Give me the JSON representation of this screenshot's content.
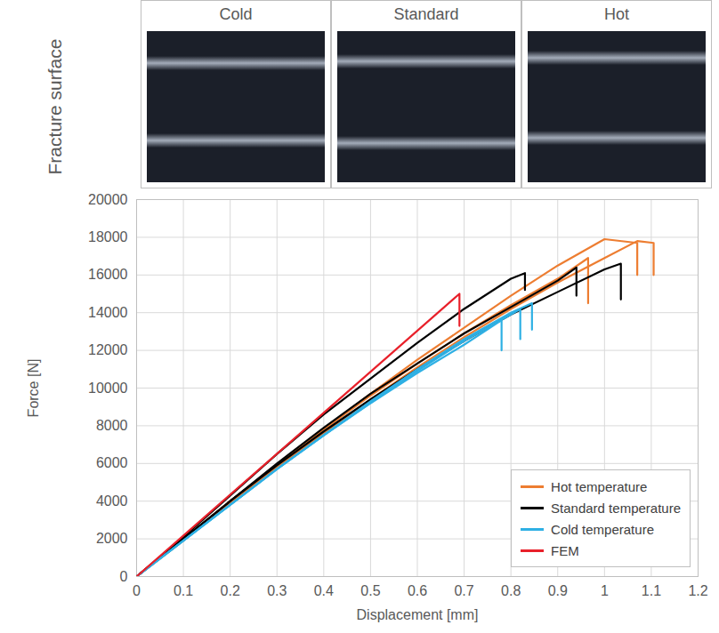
{
  "fracture_surface": {
    "label": "Fracture surface",
    "panels": [
      "Cold",
      "Standard",
      "Hot"
    ]
  },
  "chart_data": {
    "type": "line",
    "xlabel": "Displacement [mm]",
    "ylabel": "Force [N]",
    "xlim": [
      0,
      1.2
    ],
    "xticks": [
      0,
      0.1,
      0.2,
      0.3,
      0.4,
      0.5,
      0.6,
      0.7,
      0.8,
      0.9,
      1,
      1.1,
      1.2
    ],
    "ylim": [
      0,
      20000
    ],
    "yticks": [
      0,
      2000,
      4000,
      6000,
      8000,
      10000,
      12000,
      14000,
      16000,
      18000,
      20000
    ],
    "grid": true,
    "legend": "lower right",
    "series": [
      {
        "name": "Hot temperature",
        "color": "#ed7d31",
        "x": [
          0,
          0.1,
          0.2,
          0.3,
          0.4,
          0.5,
          0.6,
          0.7,
          0.8,
          0.9,
          0.965,
          0.965
        ],
        "values": [
          0,
          2000,
          4000,
          5900,
          7800,
          9600,
          11300,
          12900,
          14400,
          15800,
          16900,
          14500
        ]
      },
      {
        "name": "Hot temperature",
        "color": "#ed7d31",
        "x": [
          0,
          0.1,
          0.2,
          0.3,
          0.4,
          0.5,
          0.6,
          0.7,
          0.8,
          0.9,
          1,
          1.07,
          1.07
        ],
        "values": [
          0,
          2000,
          4000,
          5900,
          7800,
          9700,
          11500,
          13200,
          14900,
          16500,
          17900,
          17700,
          16000
        ]
      },
      {
        "name": "Hot temperature",
        "color": "#ed7d31",
        "x": [
          0,
          0.1,
          0.2,
          0.3,
          0.4,
          0.5,
          0.6,
          0.7,
          0.8,
          0.9,
          1,
          1.07,
          1.105,
          1.105
        ],
        "values": [
          0,
          1900,
          3900,
          5800,
          7600,
          9400,
          11100,
          12700,
          14200,
          15600,
          16900,
          17800,
          17700,
          16000
        ]
      },
      {
        "name": "Standard temperature",
        "color": "#000000",
        "x": [
          0,
          0.1,
          0.2,
          0.3,
          0.4,
          0.5,
          0.6,
          0.7,
          0.8,
          0.83,
          0.83
        ],
        "values": [
          0,
          2100,
          4300,
          6500,
          8600,
          10500,
          12400,
          14200,
          15800,
          16100,
          15200
        ]
      },
      {
        "name": "Standard temperature",
        "color": "#000000",
        "x": [
          0,
          0.1,
          0.2,
          0.3,
          0.4,
          0.5,
          0.6,
          0.7,
          0.8,
          0.9,
          0.94,
          0.94
        ],
        "values": [
          0,
          2000,
          4000,
          6000,
          7900,
          9700,
          11300,
          12900,
          14300,
          15700,
          16400,
          14900
        ]
      },
      {
        "name": "Standard temperature",
        "color": "#000000",
        "x": [
          0,
          0.1,
          0.2,
          0.3,
          0.4,
          0.5,
          0.6,
          0.7,
          0.8,
          0.9,
          1,
          1.035,
          1.035
        ],
        "values": [
          0,
          2000,
          4000,
          5900,
          7700,
          9400,
          11000,
          12500,
          13900,
          15100,
          16300,
          16600,
          14700
        ]
      },
      {
        "name": "Cold temperature",
        "color": "#2eb0e4",
        "x": [
          0,
          0.1,
          0.2,
          0.3,
          0.4,
          0.5,
          0.6,
          0.7,
          0.78,
          0.78
        ],
        "values": [
          0,
          1900,
          3800,
          5700,
          7500,
          9200,
          10800,
          12300,
          13600,
          12000
        ]
      },
      {
        "name": "Cold temperature",
        "color": "#2eb0e4",
        "x": [
          0,
          0.1,
          0.2,
          0.3,
          0.4,
          0.5,
          0.6,
          0.7,
          0.8,
          0.82,
          0.82
        ],
        "values": [
          0,
          1900,
          3800,
          5700,
          7500,
          9200,
          10900,
          12500,
          13900,
          14200,
          12600
        ]
      },
      {
        "name": "Cold temperature",
        "color": "#2eb0e4",
        "x": [
          0,
          0.1,
          0.2,
          0.3,
          0.4,
          0.5,
          0.6,
          0.7,
          0.8,
          0.845,
          0.845
        ],
        "values": [
          0,
          1900,
          3800,
          5700,
          7500,
          9300,
          11000,
          12600,
          14000,
          14500,
          13100
        ]
      },
      {
        "name": "FEM",
        "color": "#e8202a",
        "x": [
          0,
          0.35,
          0.69,
          0.69
        ],
        "values": [
          0,
          7600,
          15000,
          13300
        ]
      }
    ]
  }
}
